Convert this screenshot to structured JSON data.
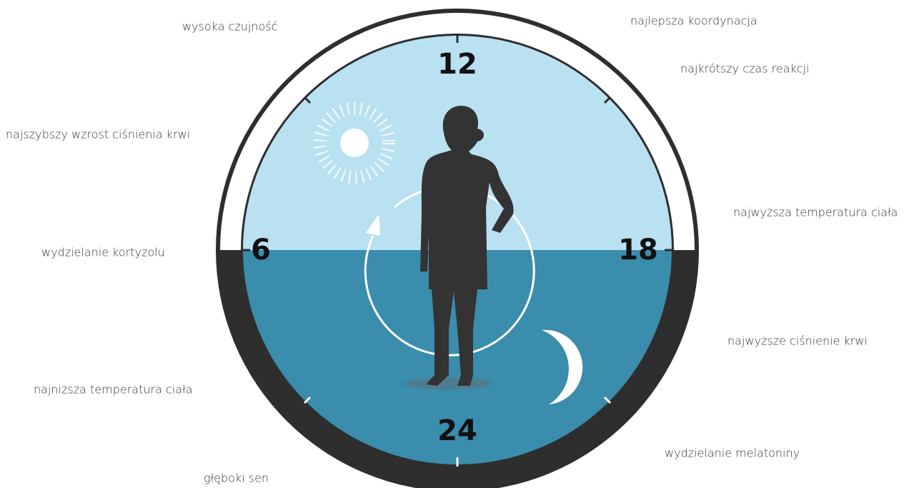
{
  "clock": {
    "hours": {
      "top": "12",
      "left": "6",
      "right": "18",
      "bottom": "24"
    }
  },
  "annotations": [
    "wysoka czujność",
    "najlepsza koordynacja",
    "najkrótszy czas reakcji",
    "najszybszy wzrost ciśnienia krwi",
    "najwyższa temperatura ciała",
    "wydzielanie kortyzolu",
    "najwyższe ciśnienie krwi",
    "najniższa temperatura ciała",
    "wydzielanie melatoniny",
    "głęboki sen"
  ]
}
